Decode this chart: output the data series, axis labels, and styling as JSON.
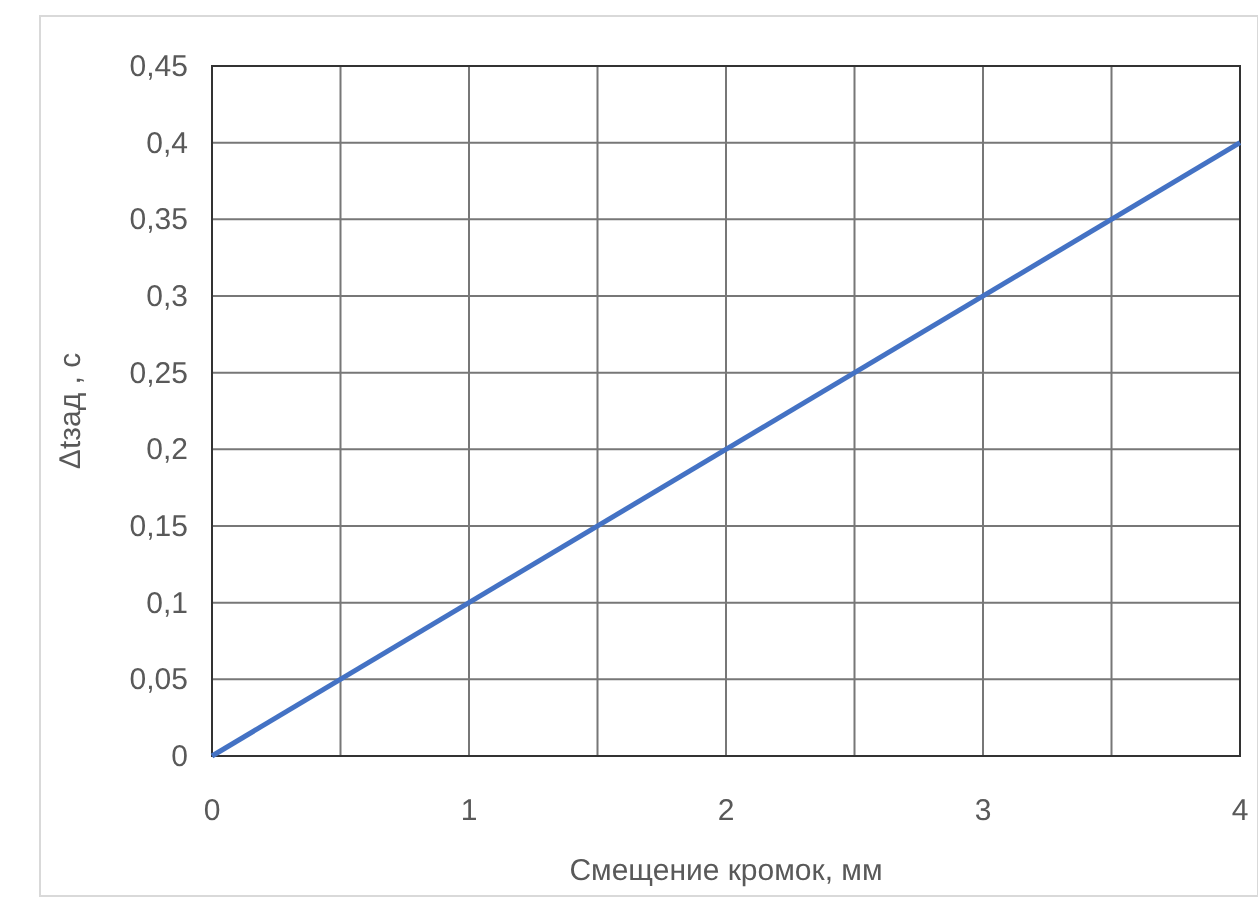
{
  "chart_data": {
    "type": "line",
    "xlabel": "Смещение кромок, мм",
    "ylabel": "Δtзад , с",
    "x": [
      0,
      4
    ],
    "series": [
      {
        "color": "#4472c4",
        "values": [
          0,
          0.4
        ]
      }
    ],
    "xlim": [
      0,
      4
    ],
    "xticks": [
      0,
      {
        "value": 0.5,
        "label": null
      },
      1,
      {
        "value": 1.5,
        "label": null
      },
      2,
      {
        "value": 2.5,
        "label": null
      },
      3,
      {
        "value": 3.5,
        "label": null
      },
      4
    ],
    "ylim": [
      0,
      0.45
    ],
    "yticks": [
      0,
      {
        "value": 0.05,
        "label": "0,05"
      },
      {
        "value": 0.1,
        "label": "0,1"
      },
      {
        "value": 0.15,
        "label": "0,15"
      },
      {
        "value": 0.2,
        "label": "0,2"
      },
      {
        "value": 0.25,
        "label": "0,25"
      },
      {
        "value": 0.3,
        "label": "0,3"
      },
      {
        "value": 0.35,
        "label": "0,35"
      },
      {
        "value": 0.4,
        "label": "0,4"
      },
      {
        "value": 0.45,
        "label": "0,45"
      }
    ],
    "grid": true,
    "marker": "none",
    "line_style": "solid"
  }
}
